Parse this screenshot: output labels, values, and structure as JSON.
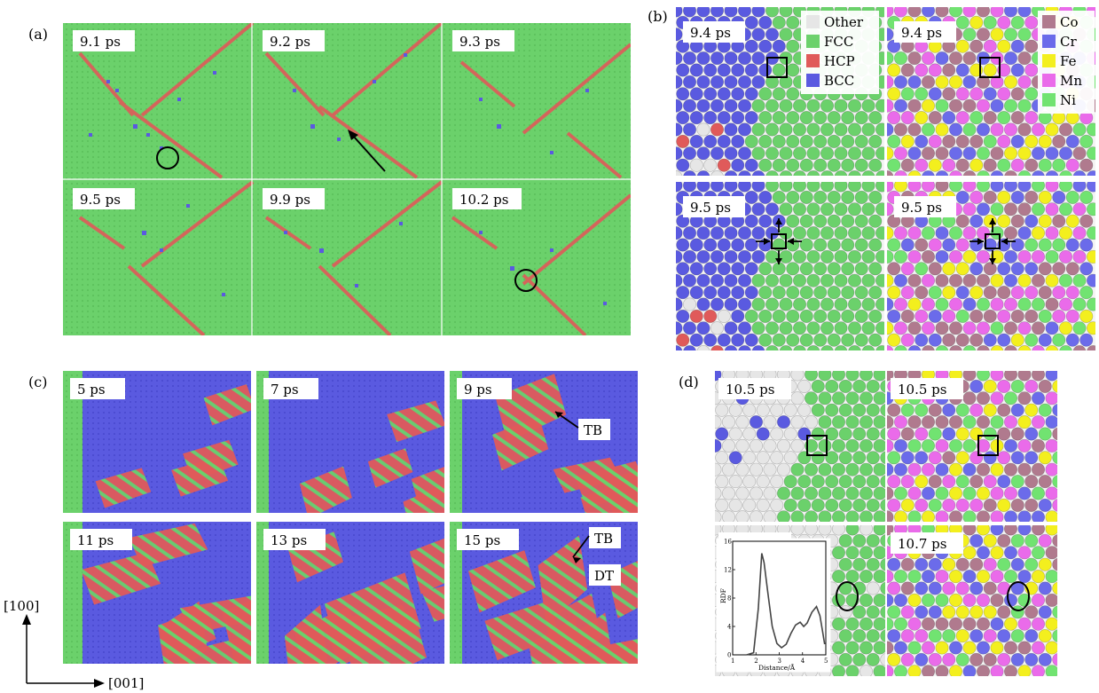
{
  "panel_labels": {
    "a": "(a)",
    "b": "(b)",
    "c": "(c)",
    "d": "(d)"
  },
  "colors": {
    "fcc": "#6bd16b",
    "hcp": "#e05a5a",
    "bcc": "#5a5ae0",
    "other": "#e6e6e6",
    "Co": "#b07a8e",
    "Cr": "#6b6bea",
    "Fe": "#f3ef1e",
    "Mn": "#ea6bea",
    "Ni": "#71e371"
  },
  "panel_a": {
    "frames": [
      "9.1 ps",
      "9.2 ps",
      "9.3 ps",
      "9.5 ps",
      "9.9 ps",
      "10.2 ps"
    ]
  },
  "panel_b": {
    "frames": [
      "9.4 ps",
      "9.4 ps",
      "9.5 ps",
      "9.5 ps"
    ],
    "structure_legend": [
      "Other",
      "FCC",
      "HCP",
      "BCC"
    ],
    "element_legend": [
      "Co",
      "Cr",
      "Fe",
      "Mn",
      "Ni"
    ]
  },
  "panel_c": {
    "frames": [
      "5 ps",
      "7 ps",
      "9 ps",
      "11 ps",
      "13 ps",
      "15 ps"
    ],
    "annotations": {
      "tb1": "TB",
      "tb2": "TB",
      "dt": "DT"
    }
  },
  "panel_d": {
    "frames": [
      "10.5 ps",
      "10.5 ps",
      "10.7 ps",
      "10.7 ps"
    ],
    "inset": {
      "xlabel": "Distance/Å",
      "ylabel": "RDF",
      "xticks": [
        "1",
        "2",
        "3",
        "4",
        "5"
      ],
      "yticks": [
        "0",
        "4",
        "8",
        "12",
        "16"
      ]
    }
  },
  "axes": {
    "vertical": "[100]",
    "horizontal": "[001]"
  },
  "chart_data": {
    "type": "line",
    "title": "",
    "xlabel": "Distance/Å",
    "ylabel": "RDF",
    "xlim": [
      1,
      5
    ],
    "ylim": [
      0,
      16
    ],
    "series": [
      {
        "x": [
          1.6,
          1.9,
          2.1,
          2.25,
          2.35,
          2.5,
          2.7,
          2.9,
          3.1,
          3.3,
          3.5,
          3.7,
          3.9,
          4.05,
          4.2,
          4.4,
          4.6,
          4.75,
          4.85,
          4.95
        ],
        "values": [
          0,
          0.3,
          6.5,
          14.3,
          13.0,
          9.0,
          4.0,
          1.6,
          1.0,
          1.5,
          3.0,
          4.2,
          4.6,
          4.0,
          4.5,
          6.0,
          6.8,
          5.5,
          3.5,
          1.5
        ]
      }
    ]
  }
}
